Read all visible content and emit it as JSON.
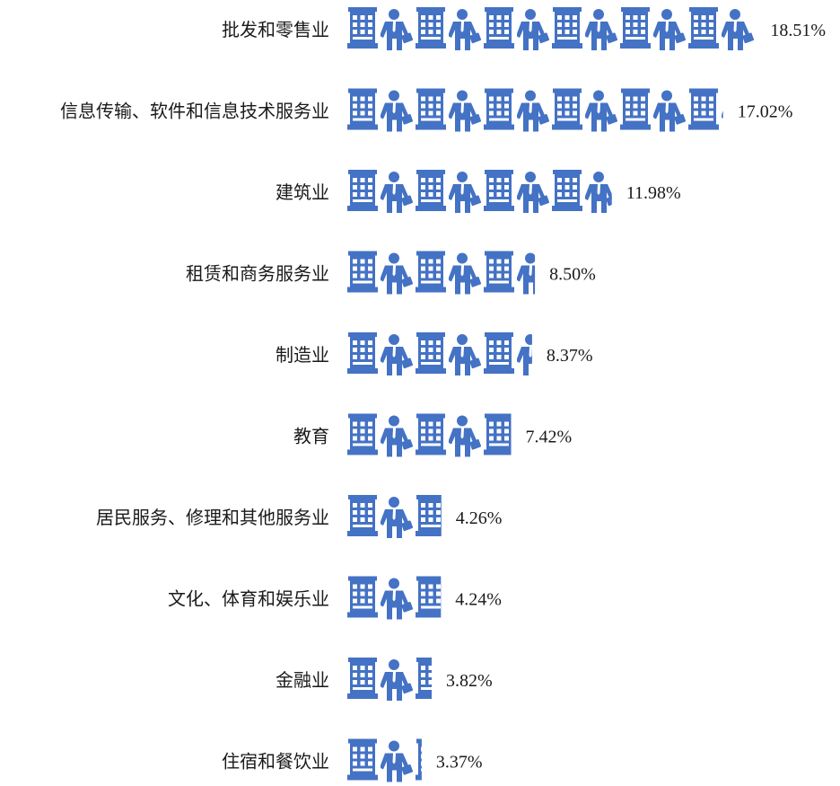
{
  "colors": {
    "icon": "#4472C4",
    "text": "#1a1a1a",
    "background": "#ffffff"
  },
  "icons": {
    "unit_a": "office-building-icon",
    "unit_b": "businessman-with-briefcase-icon"
  },
  "chart_data": {
    "type": "bar",
    "orientation": "horizontal",
    "style": "pictograph",
    "unit": "%",
    "categories": [
      "批发和零售业",
      "信息传输、软件和信息技术服务业",
      "建筑业",
      "租赁和商务服务业",
      "制造业",
      "教育",
      "居民服务、修理和其他服务业",
      "文化、体育和娱乐业",
      "金融业",
      "住宿和餐饮业"
    ],
    "values": [
      18.51,
      17.02,
      11.98,
      8.5,
      8.37,
      7.42,
      4.26,
      4.24,
      3.82,
      3.37
    ],
    "value_labels": [
      "18.51%",
      "17.02%",
      "11.98%",
      "8.50%",
      "8.37%",
      "7.42%",
      "4.26%",
      "4.24%",
      "3.82%",
      "3.37%"
    ],
    "title": "",
    "xlabel": "",
    "ylabel": "",
    "grid": false,
    "legend": "none"
  }
}
